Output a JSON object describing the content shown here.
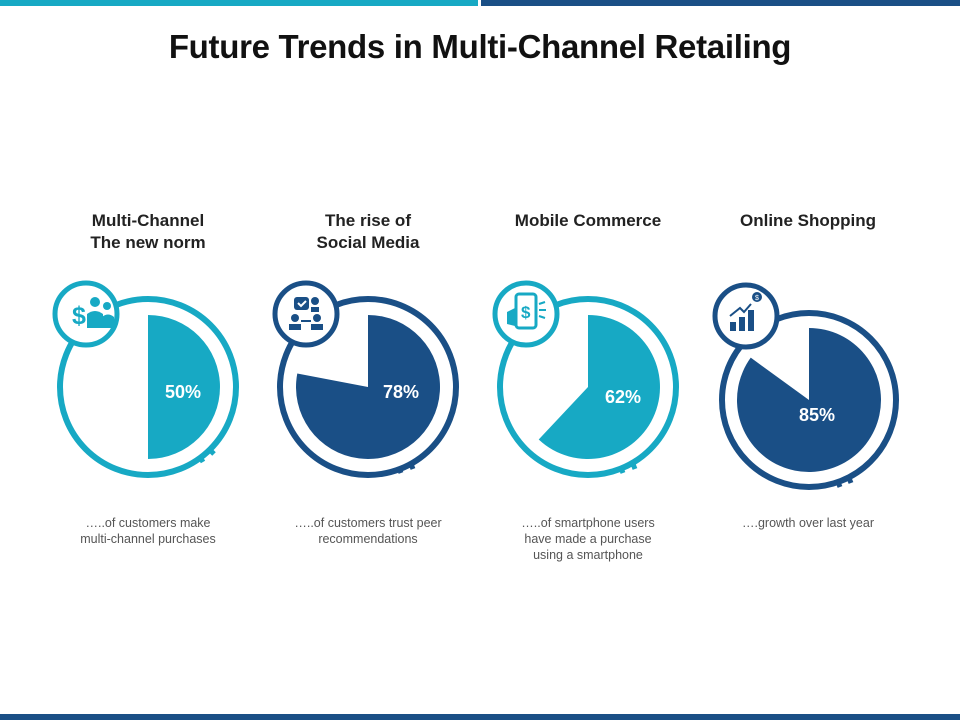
{
  "title": "Future Trends in Multi-Channel Retailing",
  "colors": {
    "teal": "#17a9c4",
    "navy": "#1a4f86"
  },
  "cards": [
    {
      "heading": "Multi-Channel\nThe new norm",
      "percent_label": "50%",
      "percent": 50,
      "caption": "…..of customers make\nmulti-channel purchases",
      "icon": "money-people-icon",
      "color": "#17a9c4"
    },
    {
      "heading": "The rise of\nSocial Media",
      "percent_label": "78%",
      "percent": 78,
      "caption": "…..of customers trust peer\nrecommendations",
      "icon": "social-network-icon",
      "color": "#1a4f86"
    },
    {
      "heading": "Mobile Commerce",
      "percent_label": "62%",
      "percent": 62,
      "caption": "…..of smartphone users\nhave made a purchase\nusing a smartphone",
      "icon": "mobile-payment-icon",
      "color": "#17a9c4"
    },
    {
      "heading": "Online Shopping",
      "percent_label": "85%",
      "percent": 85,
      "caption": "….growth over last year",
      "icon": "growth-chart-icon",
      "color": "#1a4f86"
    }
  ]
}
